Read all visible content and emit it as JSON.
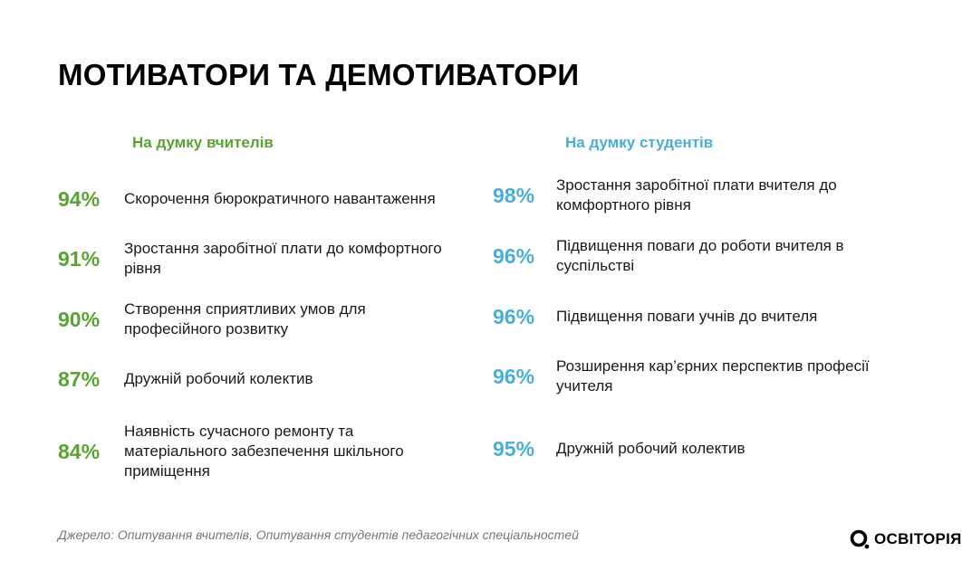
{
  "title": "МОТИВАТОРИ ТА ДЕМОТИВАТОРИ",
  "colors": {
    "teachers": "#5aa332",
    "students": "#4aaed8"
  },
  "teachers": {
    "heading": "На думку вчителів",
    "items": [
      {
        "percent": "94%",
        "text": "Скорочення бюрократичного навантаження"
      },
      {
        "percent": "91%",
        "text": "Зростання заробітної плати до комфортного рівня"
      },
      {
        "percent": "90%",
        "text": "Створення сприятливих умов для професійного розвитку"
      },
      {
        "percent": "87%",
        "text": "Дружній робочий колектив"
      },
      {
        "percent": "84%",
        "text": "Наявність сучасного ремонту та матеріального забезпечення шкільного приміщення"
      }
    ]
  },
  "students": {
    "heading": "На думку студентів",
    "items": [
      {
        "percent": "98%",
        "text": "Зростання заробітної плати вчителя до комфортного рівня"
      },
      {
        "percent": "96%",
        "text": "Підвищення поваги до роботи вчителя в суспільстві"
      },
      {
        "percent": "96%",
        "text": "Підвищення поваги учнів до вчителя"
      },
      {
        "percent": "96%",
        "text": "Розширення кар’єрних перспектив професії учителя"
      },
      {
        "percent": "95%",
        "text": "Дружній робочий колектив"
      }
    ]
  },
  "source": "Джерело: Опитування вчителів, Опитування студентів педагогічних спеціальностей",
  "logo": {
    "text": "ОСВІТОРІЯ",
    "icon": "osvitoria-logo-icon"
  }
}
